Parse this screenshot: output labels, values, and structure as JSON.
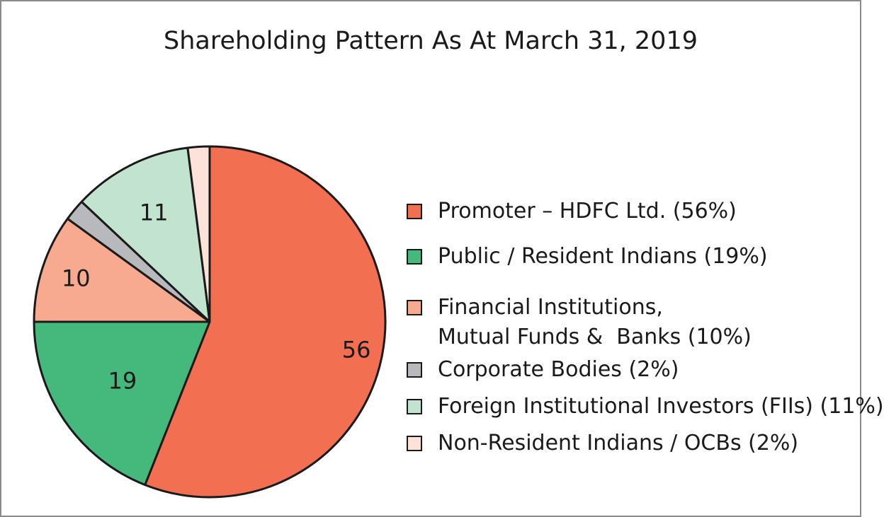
{
  "chart_data": {
    "type": "pie",
    "title": "Shareholding Pattern As At March 31, 2019",
    "legend_position": "right",
    "slices": [
      {
        "value": 56,
        "label": "56",
        "legend": [
          "Promoter – HDFC Ltd. (56%)"
        ],
        "color": "#f26f52"
      },
      {
        "value": 19,
        "label": "19",
        "legend": [
          "Public / Resident Indians (19%)"
        ],
        "color": "#45b97c"
      },
      {
        "value": 10,
        "label": "10",
        "legend": [
          "Financial Institutions,",
          "Mutual Funds &  Banks (10%)"
        ],
        "color": "#f7aa8f"
      },
      {
        "value": 2,
        "label": "",
        "legend": [
          "Corporate Bodies (2%)"
        ],
        "color": "#b8b9bc"
      },
      {
        "value": 11,
        "label": "11",
        "legend": [
          "Foreign Institutional Investors (FIIs) (11%)"
        ],
        "color": "#c2e4cf"
      },
      {
        "value": 2,
        "label": "",
        "legend": [
          "Non-Resident Indians / OCBs (2%)"
        ],
        "color": "#fde2d9"
      }
    ]
  }
}
